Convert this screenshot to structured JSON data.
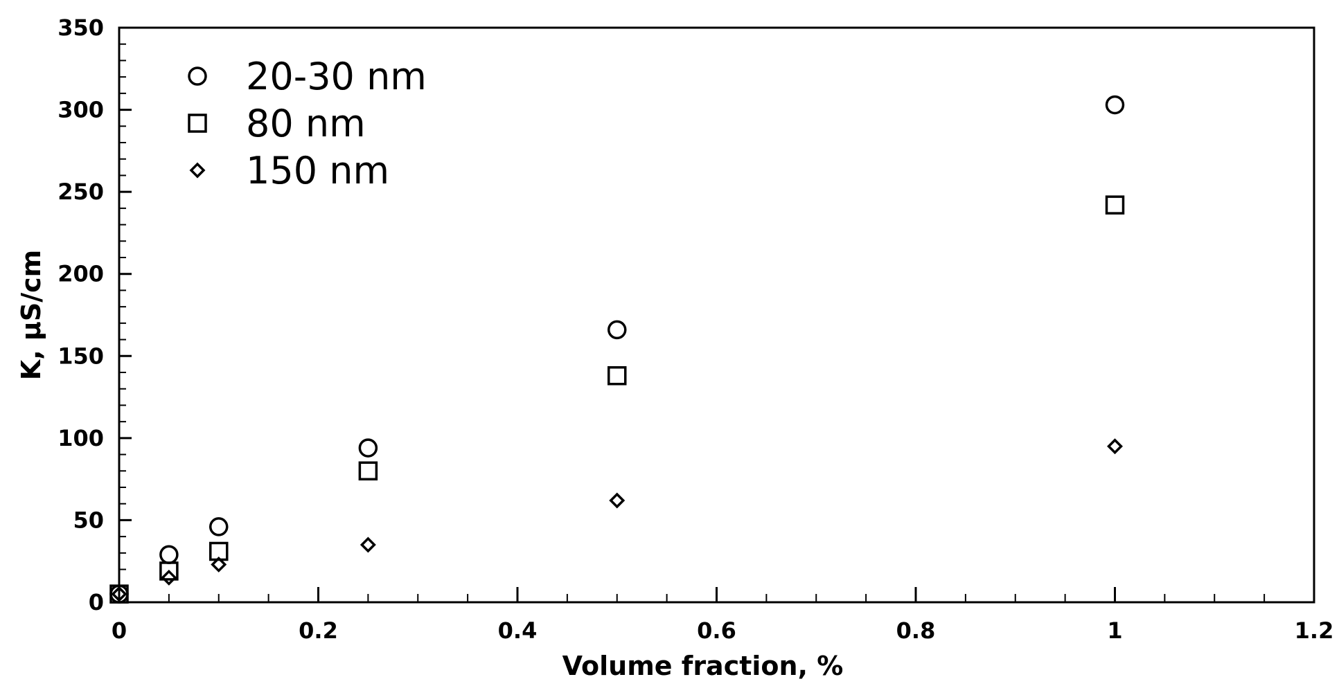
{
  "chart_data": {
    "type": "scatter",
    "xlabel": "Volume fraction, %",
    "ylabel": "K, µS/cm",
    "xlim": [
      0,
      1.2
    ],
    "ylim": [
      0,
      350
    ],
    "x_ticks": [
      "0",
      "0.2",
      "0.4",
      "0.6",
      "0.8",
      "1",
      "1.2"
    ],
    "y_ticks": [
      "0",
      "50",
      "100",
      "150",
      "200",
      "250",
      "300",
      "350"
    ],
    "grid": false,
    "legend_position": "top-left",
    "series": [
      {
        "name": "20-30 nm",
        "marker": "circle",
        "x": [
          0,
          0.05,
          0.1,
          0.25,
          0.5,
          1
        ],
        "y": [
          5,
          29,
          46,
          94,
          166,
          303
        ]
      },
      {
        "name": "80 nm",
        "marker": "square",
        "x": [
          0,
          0.05,
          0.1,
          0.25,
          0.5,
          1
        ],
        "y": [
          5,
          19,
          31,
          80,
          138,
          242
        ]
      },
      {
        "name": "150 nm",
        "marker": "diamond",
        "x": [
          0,
          0.05,
          0.1,
          0.25,
          0.5,
          1
        ],
        "y": [
          5,
          15,
          23,
          35,
          62,
          95
        ]
      }
    ]
  }
}
